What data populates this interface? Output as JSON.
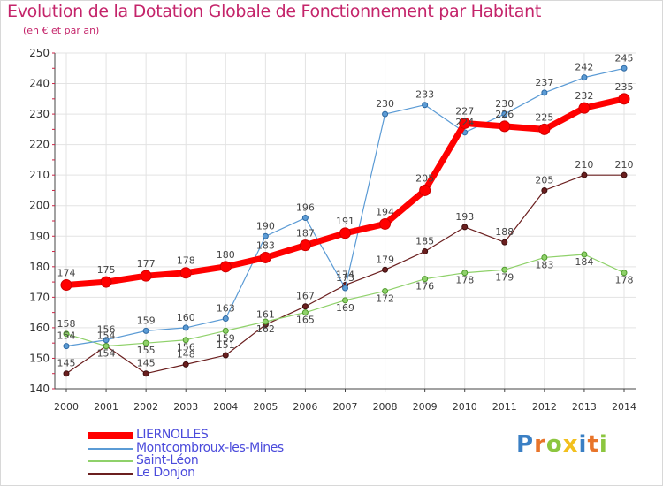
{
  "title": "Evolution de la Dotation Globale de Fonctionnement par Habitant",
  "subtitle": "(en € et par an)",
  "logo": {
    "text": "Proxiti",
    "letters": [
      {
        "ch": "P",
        "color": "#3a7fc4"
      },
      {
        "ch": "r",
        "color": "#e8742a"
      },
      {
        "ch": "o",
        "color": "#8cc63f"
      },
      {
        "ch": "x",
        "color": "#f2c01e"
      },
      {
        "ch": "i",
        "color": "#3a7fc4"
      },
      {
        "ch": "t",
        "color": "#e8742a"
      },
      {
        "ch": "i",
        "color": "#8cc63f"
      }
    ]
  },
  "chart_data": {
    "type": "line",
    "title": "Evolution de la Dotation Globale de Fonctionnement par Habitant",
    "subtitle": "(en € et par an)",
    "x": [
      "2000",
      "2001",
      "2002",
      "2003",
      "2004",
      "2005",
      "2006",
      "2007",
      "2008",
      "2009",
      "2010",
      "2011",
      "2012",
      "2013",
      "2014"
    ],
    "ylim": [
      140,
      250
    ],
    "yticks": [
      140,
      150,
      160,
      170,
      180,
      190,
      200,
      210,
      220,
      230,
      240,
      250
    ],
    "grid": true,
    "legend_position": "bottom-left",
    "series": [
      {
        "name": "Le Donjon",
        "color": "#6b1f1f",
        "values": [
          145,
          154,
          145,
          148,
          151,
          161,
          167,
          174,
          179,
          185,
          193,
          188,
          205,
          210,
          210
        ]
      },
      {
        "name": "Saint-Léon",
        "color": "#8fd16a",
        "values": [
          158,
          154,
          155,
          156,
          159,
          162,
          165,
          169,
          172,
          176,
          178,
          179,
          183,
          184,
          178
        ]
      },
      {
        "name": "Montcombroux-les-Mines",
        "color": "#5b9bd5",
        "values": [
          154,
          156,
          159,
          160,
          163,
          190,
          196,
          173,
          230,
          233,
          224,
          230,
          237,
          242,
          245
        ]
      },
      {
        "name": "LIERNOLLES",
        "color": "#ff0000",
        "values": [
          174,
          175,
          177,
          178,
          180,
          183,
          187,
          191,
          194,
          205,
          227,
          226,
          225,
          232,
          235
        ]
      }
    ],
    "labels_shown": {
      "Le Donjon": [
        145,
        154,
        145,
        148,
        151,
        161,
        167,
        174,
        179,
        185,
        193,
        188,
        205,
        210,
        210
      ],
      "Saint-Léon": [
        158,
        154,
        155,
        156,
        159,
        162,
        165,
        169,
        172,
        176,
        178,
        179,
        183,
        184,
        178
      ],
      "Montcombroux-les-Mines": [
        154,
        156,
        159,
        160,
        163,
        190,
        196,
        173,
        230,
        233,
        224,
        230,
        237,
        242,
        245
      ],
      "LIERNOLLES": [
        174,
        175,
        177,
        178,
        180,
        183,
        187,
        191,
        194,
        205,
        227,
        226,
        225,
        232,
        235
      ]
    }
  },
  "legend": [
    {
      "name": "LIERNOLLES",
      "color": "#ff0000",
      "text_color": "#4a4adb"
    },
    {
      "name": "Montcombroux-les-Mines",
      "color": "#5b9bd5",
      "text_color": "#4a4adb"
    },
    {
      "name": "Saint-Léon",
      "color": "#8fd16a",
      "text_color": "#4a4adb"
    },
    {
      "name": "Le Donjon",
      "color": "#6b1f1f",
      "text_color": "#4a4adb"
    }
  ]
}
